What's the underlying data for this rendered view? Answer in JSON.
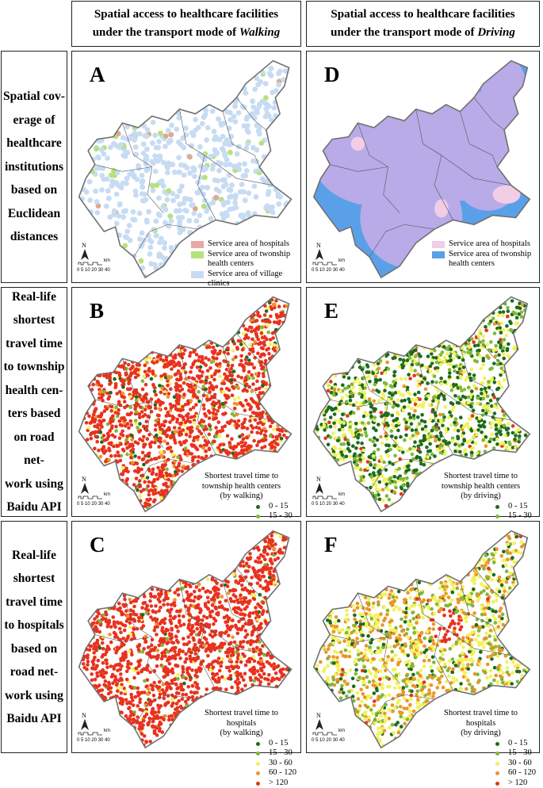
{
  "headers": {
    "walking": {
      "line1": "Spatial access to healthcare facilities",
      "line2_prefix": "under the transport mode of ",
      "mode": "Walking"
    },
    "driving": {
      "line1": "Spatial access to healthcare facilities",
      "line2_prefix": "under the transport mode of ",
      "mode": "Driving"
    }
  },
  "row_labels": {
    "row1": [
      "Spatial cov-",
      "erage of",
      "healthcare",
      "institutions",
      "based on",
      "Euclidean",
      "distances"
    ],
    "row2": [
      "Real-life",
      "shortest",
      "travel time",
      "to township",
      "health cen-",
      "ters based",
      "on road net-",
      "work using",
      "Baidu API"
    ],
    "row3": [
      "Real-life",
      "shortest",
      "travel time",
      "to hospitals",
      "based on",
      "road net-",
      "work using",
      "Baidu API"
    ]
  },
  "panel_letters": {
    "A": "A",
    "B": "B",
    "C": "C",
    "D": "D",
    "E": "E",
    "F": "F"
  },
  "north_label": "N",
  "scale_bar": {
    "ticks": "0 5 10   20   30   40",
    "unit": "km"
  },
  "legend_A": [
    {
      "label": "Service area of hospitals",
      "color": "#e8a8a8"
    },
    {
      "label": "Service area of twonship health centers",
      "color": "#b6e27a"
    },
    {
      "label": "Service area of village clinics",
      "color": "#c7dcf3"
    }
  ],
  "legend_D": [
    {
      "label": "Service area of hospitals",
      "color": "#f1cde6"
    },
    {
      "label": "Service area of twonship health centers",
      "color": "#5aa0e8"
    }
  ],
  "legend_B": {
    "title": [
      "Shortest travel time to",
      "township health centers",
      "(by walking)"
    ]
  },
  "legend_E": {
    "title": [
      "Shortest travel time to",
      "township health centers",
      "(by driving)"
    ]
  },
  "legend_C": {
    "title": [
      "Shortest travel time to",
      "hospitals",
      "(by walking)"
    ]
  },
  "legend_F": {
    "title": [
      "Shortest travel time to",
      "hospitals",
      "(by driving)"
    ]
  },
  "time_classes": [
    {
      "label": "0 - 15",
      "color": "#1d6b1d"
    },
    {
      "label": "15 - 30",
      "color": "#7fb83a"
    },
    {
      "label": "30 - 60",
      "color": "#f2f25a"
    },
    {
      "label": "60 - 120",
      "color": "#e8962a"
    },
    {
      "label": "> 120",
      "color": "#e8321e"
    }
  ],
  "colors": {
    "boundary": "#707070",
    "village_fill": "#c7dcf3",
    "hospital_d": "#b8abe8",
    "health_center_d": "#5aa0e8"
  }
}
